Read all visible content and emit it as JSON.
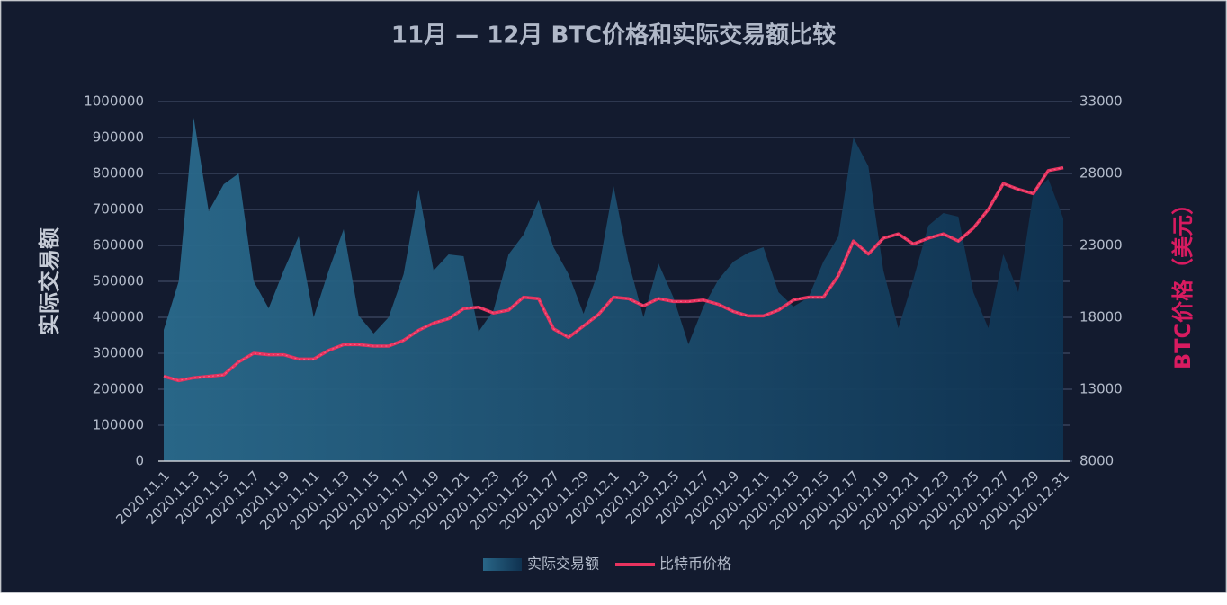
{
  "chart_data": {
    "type": "area_line",
    "title": "11月 — 12月 BTC价格和实际交易额比较",
    "y_label": "实际交易额",
    "y2_label": "BTC价格（美元）",
    "categories": [
      "2020.11.1",
      null,
      "2020.11.3",
      null,
      "2020.11.5",
      null,
      "2020.11.7",
      null,
      "2020.11.9",
      null,
      "2020.11.11",
      null,
      "2020.11.13",
      null,
      "2020.11.15",
      null,
      "2020.11.17",
      null,
      "2020.11.19",
      null,
      "2020.11.21",
      null,
      "2020.11.23",
      null,
      "2020.11.25",
      null,
      "2020.11.27",
      null,
      "2020.11.29",
      null,
      "2020.12.1",
      null,
      "2020.12.3",
      null,
      "2020.12.5",
      null,
      "2020.12.7",
      null,
      "2020.12.9",
      null,
      "2020.12.11",
      null,
      "2020.12.13",
      null,
      "2020.12.15",
      null,
      "2020.12.17",
      null,
      "2020.12.19",
      null,
      "2020.12.21",
      null,
      "2020.12.23",
      null,
      "2020.12.25",
      null,
      "2020.12.27",
      null,
      "2020.12.29",
      null,
      "2020.12.31"
    ],
    "series": [
      {
        "name": "实际交易额",
        "type": "area",
        "color": "#2a6a8c",
        "values": [
          365000,
          500000,
          955000,
          695000,
          770000,
          800000,
          500000,
          425000,
          530000,
          625000,
          400000,
          530000,
          645000,
          405000,
          355000,
          400000,
          520000,
          755000,
          530000,
          575000,
          570000,
          360000,
          420000,
          575000,
          630000,
          725000,
          595000,
          520000,
          410000,
          530000,
          765000,
          555000,
          400000,
          550000,
          455000,
          325000,
          430000,
          505000,
          555000,
          580000,
          595000,
          470000,
          430000,
          455000,
          555000,
          625000,
          900000,
          820000,
          530000,
          370000,
          505000,
          655000,
          690000,
          680000,
          470000,
          370000,
          575000,
          470000,
          745000,
          785000,
          675000
        ]
      },
      {
        "name": "比特币价格",
        "type": "line",
        "axis": "y2",
        "color": "#e8335f",
        "values": [
          13900,
          13600,
          13800,
          13900,
          14000,
          14900,
          15500,
          15400,
          15400,
          15100,
          15100,
          15700,
          16100,
          16100,
          16000,
          16000,
          16400,
          17100,
          17600,
          17900,
          18600,
          18700,
          18300,
          18500,
          19400,
          19300,
          17200,
          16600,
          17400,
          18200,
          19400,
          19300,
          18800,
          19300,
          19100,
          19100,
          19200,
          18900,
          18400,
          18100,
          18100,
          18500,
          19200,
          19400,
          19400,
          20900,
          23300,
          22400,
          23500,
          23800,
          23100,
          23500,
          23800,
          23300,
          24200,
          25500,
          27300,
          26900,
          26600,
          28200,
          28400
        ]
      }
    ],
    "ylim": [
      0,
      1000000
    ],
    "yticks": [
      0,
      100000,
      200000,
      300000,
      400000,
      500000,
      600000,
      700000,
      800000,
      900000,
      1000000
    ],
    "y2lim": [
      8000,
      33000
    ],
    "y2ticks": [
      8000,
      13000,
      18000,
      23000,
      28000,
      33000
    ],
    "grid": true,
    "legend": "bottom"
  }
}
